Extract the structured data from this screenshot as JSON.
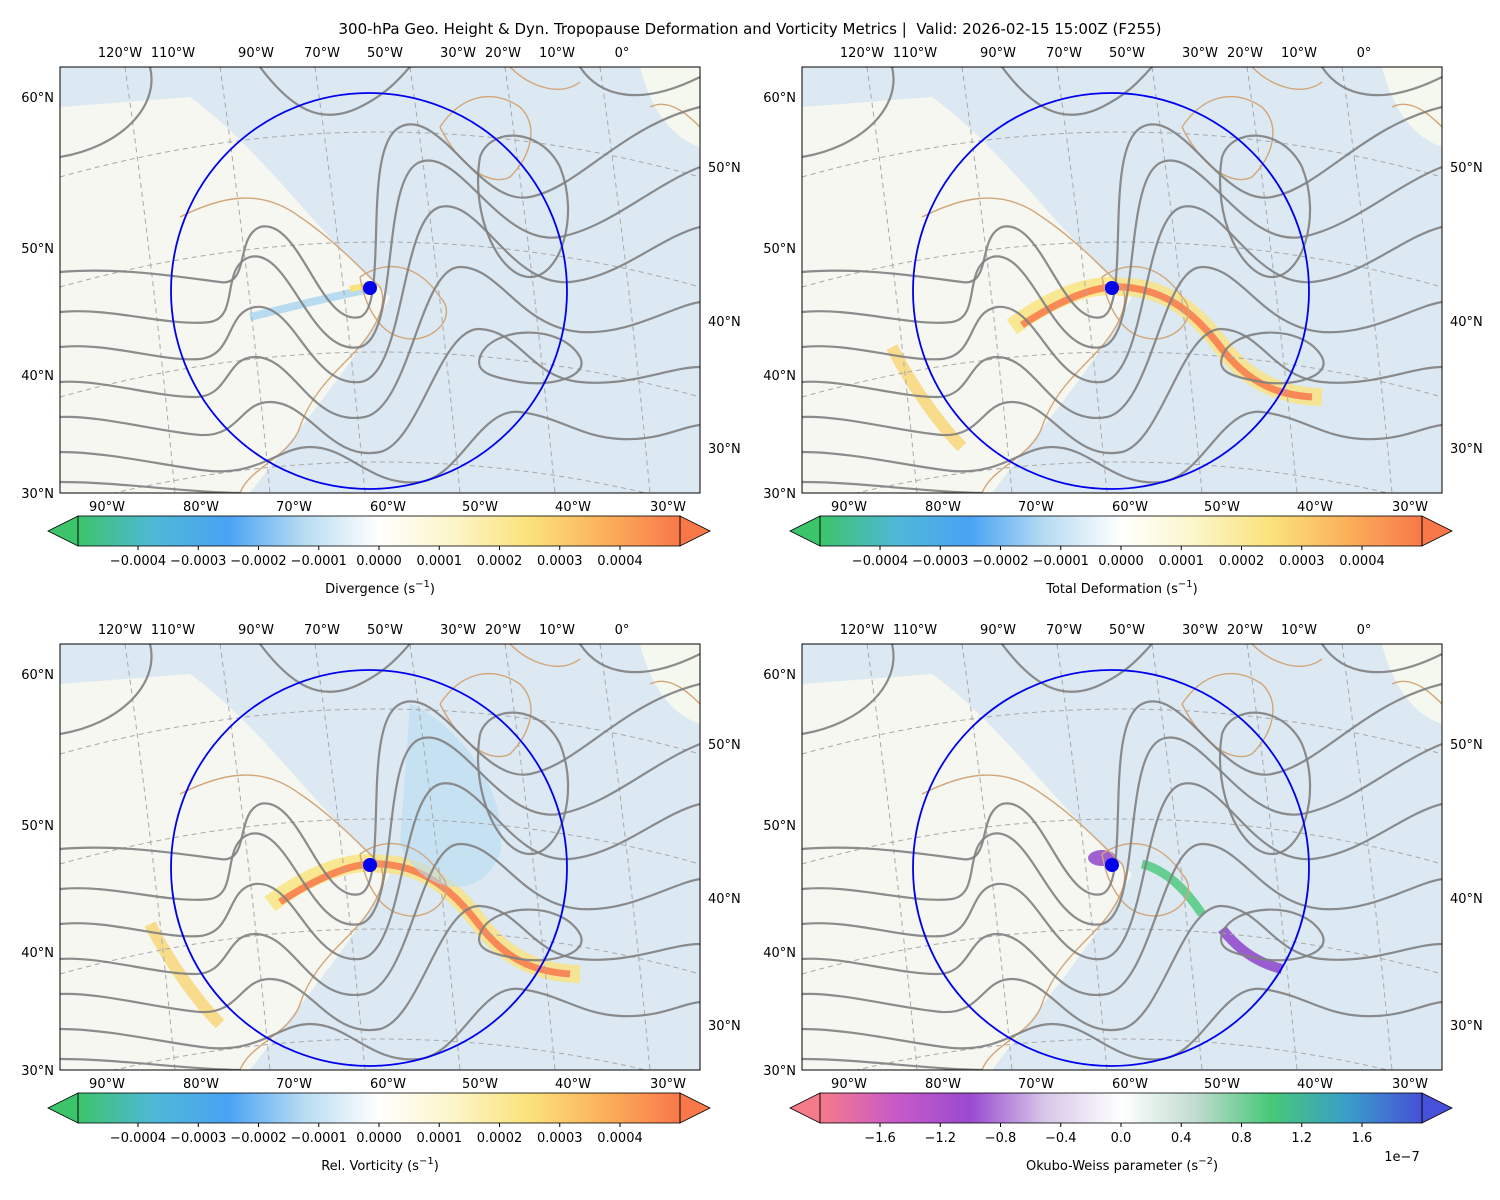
{
  "title": "300-hPa Geo. Height & Dyn. Tropopause Deformation and Vorticity Metrics |  Valid: 2026-02-15 15:00Z (F255)",
  "colors": {
    "contour": "#808080",
    "circle": "#0000ee",
    "coast": "#d2a679",
    "ocean": "#dce8f2",
    "land": "#f5f8ef",
    "grid": "#a9a9a9"
  },
  "top_lon_labels": [
    "120°W",
    "110°W",
    "90°W",
    "70°W",
    "50°W",
    "30°W",
    "20°W",
    "10°W",
    "0°"
  ],
  "bottom_lon_labels": [
    "90°W",
    "80°W",
    "70°W",
    "60°W",
    "50°W",
    "40°W",
    "30°W"
  ],
  "left_lat_labels": [
    "60°N",
    "50°N",
    "40°N",
    "30°N"
  ],
  "right_lat_labels": [
    "50°N",
    "40°N",
    "30°N"
  ],
  "panels": [
    {
      "name": "divergence",
      "colorbar_label": "Divergence (s$^{-1}$)",
      "colorbar_ticks": [
        "−0.0004",
        "−0.0003",
        "−0.0002",
        "−0.0001",
        "0.0000",
        "0.0001",
        "0.0002",
        "0.0003",
        "0.0004"
      ],
      "colorbar_scale": "",
      "colormap": [
        "#3cc46a",
        "#4fb8d6",
        "#4aa3f5",
        "#b8dcf2",
        "#ffffff",
        "#fbf5c8",
        "#fbe27a",
        "#fbb05a",
        "#f8784a"
      ]
    },
    {
      "name": "total-deformation",
      "colorbar_label": "Total Deformation (s$^{-1}$)",
      "colorbar_ticks": [
        "−0.0004",
        "−0.0003",
        "−0.0002",
        "−0.0001",
        "0.0000",
        "0.0001",
        "0.0002",
        "0.0003",
        "0.0004"
      ],
      "colorbar_scale": "",
      "colormap": [
        "#3cc46a",
        "#4fb8d6",
        "#4aa3f5",
        "#b8dcf2",
        "#ffffff",
        "#fbf5c8",
        "#fbe27a",
        "#fbb05a",
        "#f8784a"
      ]
    },
    {
      "name": "relative-vorticity",
      "colorbar_label": "Rel. Vorticity (s$^{-1}$)",
      "colorbar_ticks": [
        "−0.0004",
        "−0.0003",
        "−0.0002",
        "−0.0001",
        "0.0000",
        "0.0001",
        "0.0002",
        "0.0003",
        "0.0004"
      ],
      "colorbar_scale": "",
      "colormap": [
        "#3cc46a",
        "#4fb8d6",
        "#4aa3f5",
        "#b8dcf2",
        "#ffffff",
        "#fbf5c8",
        "#fbe27a",
        "#fbb05a",
        "#f8784a"
      ]
    },
    {
      "name": "okubo-weiss",
      "colorbar_label": "Okubo-Weiss parameter (s$^{-2}$)",
      "colorbar_ticks": [
        "−1.6",
        "−1.2",
        "−0.8",
        "−0.4",
        "0.0",
        "0.4",
        "0.8",
        "1.2",
        "1.6"
      ],
      "colorbar_scale": "1e−7",
      "colormap": [
        "#f57a8a",
        "#c85ac8",
        "#9a4ad0",
        "#d8c8e8",
        "#ffffff",
        "#c0dcd0",
        "#46c878",
        "#3a9ec8",
        "#4650d8"
      ]
    }
  ]
}
